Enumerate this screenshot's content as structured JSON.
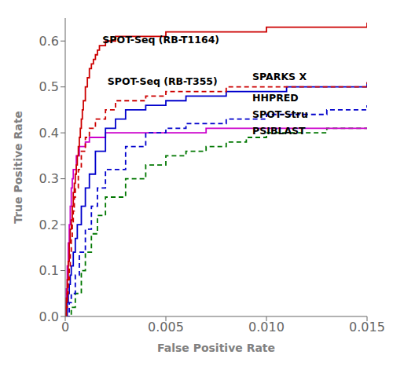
{
  "chart_data": {
    "type": "step",
    "title": "",
    "xlabel": "False Positive Rate",
    "ylabel": "True Positive Rate",
    "xlim": [
      0,
      0.015
    ],
    "ylim": [
      0,
      0.65
    ],
    "xticks": [
      0,
      0.005,
      {
        "value": 0.01,
        "label": "0.010"
      },
      0.015
    ],
    "yticks": [
      {
        "value": 0,
        "label": "0.0"
      },
      0.1,
      0.2,
      0.3,
      0.4,
      0.5,
      0.6
    ],
    "grid": false,
    "series": [
      {
        "color": "#007700",
        "line_style": "dashed",
        "x": [
          0,
          0.0003,
          0.0005,
          0.0008,
          0.001,
          0.0013,
          0.0016,
          0.002,
          0.003,
          0.004,
          0.005,
          0.006,
          0.007,
          0.008,
          0.009,
          0.01,
          0.011,
          0.012,
          0.013,
          0.014,
          0.015
        ],
        "values": [
          0,
          0.02,
          0.05,
          0.1,
          0.14,
          0.18,
          0.22,
          0.26,
          0.3,
          0.33,
          0.35,
          0.36,
          0.37,
          0.38,
          0.39,
          0.4,
          0.4,
          0.4,
          0.41,
          0.41,
          0.41
        ]
      },
      {
        "color": "#cc00cc",
        "line_style": "solid",
        "x": [
          0,
          5e-05,
          0.0001,
          0.00015,
          0.0002,
          0.00025,
          0.0003,
          0.00035,
          0.0004,
          0.00055,
          0.0007,
          0.001,
          0.0012,
          0.0015,
          0.002,
          0.003,
          0.005,
          0.007,
          0.01,
          0.015
        ],
        "values": [
          0,
          0.06,
          0.11,
          0.16,
          0.2,
          0.24,
          0.28,
          0.3,
          0.32,
          0.35,
          0.37,
          0.38,
          0.39,
          0.39,
          0.4,
          0.4,
          0.4,
          0.41,
          0.41,
          0.41
        ]
      },
      {
        "color": "#0000cc",
        "line_style": "dashed",
        "x": [
          0,
          0.0002,
          0.0003,
          0.0005,
          0.0007,
          0.001,
          0.0013,
          0.0016,
          0.002,
          0.003,
          0.004,
          0.005,
          0.006,
          0.007,
          0.008,
          0.009,
          0.01,
          0.011,
          0.012,
          0.013,
          0.014,
          0.015
        ],
        "values": [
          0,
          0.03,
          0.05,
          0.09,
          0.14,
          0.19,
          0.24,
          0.28,
          0.32,
          0.37,
          0.4,
          0.41,
          0.42,
          0.42,
          0.43,
          0.43,
          0.44,
          0.44,
          0.44,
          0.45,
          0.45,
          0.46
        ]
      },
      {
        "color": "#0000cc",
        "line_style": "solid",
        "x": [
          0,
          0.0001,
          0.00015,
          0.0002,
          0.00025,
          0.0003,
          0.0004,
          0.0005,
          0.0006,
          0.0008,
          0.001,
          0.0012,
          0.0015,
          0.002,
          0.0025,
          0.003,
          0.004,
          0.005,
          0.006,
          0.007,
          0.008,
          0.009,
          0.01,
          0.011,
          0.012,
          0.013,
          0.014,
          0.015
        ],
        "values": [
          0,
          0.03,
          0.05,
          0.07,
          0.09,
          0.11,
          0.14,
          0.17,
          0.2,
          0.24,
          0.28,
          0.31,
          0.36,
          0.41,
          0.43,
          0.45,
          0.46,
          0.47,
          0.48,
          0.48,
          0.49,
          0.49,
          0.49,
          0.5,
          0.5,
          0.5,
          0.5,
          0.51
        ]
      },
      {
        "color": "#cc0000",
        "line_style": "dashed",
        "x": [
          0,
          5e-05,
          0.0001,
          0.00015,
          0.0002,
          0.00025,
          0.0003,
          0.00035,
          0.0004,
          0.00045,
          0.0005,
          0.00065,
          0.0008,
          0.001,
          0.0012,
          0.0015,
          0.002,
          0.0025,
          0.003,
          0.004,
          0.005,
          0.006,
          0.008,
          0.01,
          0.012,
          0.015
        ],
        "values": [
          0,
          0.02,
          0.05,
          0.08,
          0.11,
          0.14,
          0.17,
          0.2,
          0.23,
          0.26,
          0.28,
          0.32,
          0.36,
          0.39,
          0.41,
          0.43,
          0.45,
          0.47,
          0.47,
          0.48,
          0.49,
          0.49,
          0.5,
          0.5,
          0.5,
          0.51
        ]
      },
      {
        "color": "#cc0000",
        "line_style": "solid",
        "x": [
          0,
          5e-05,
          0.0001,
          0.00015,
          0.0002,
          0.00025,
          0.0003,
          0.00035,
          0.0004,
          0.00045,
          0.0005,
          0.00055,
          0.0006,
          0.00065,
          0.0007,
          0.00075,
          0.0008,
          0.00085,
          0.0009,
          0.001,
          0.0011,
          0.0012,
          0.0013,
          0.0014,
          0.0015,
          0.0016,
          0.0017,
          0.0018,
          0.002,
          0.0022,
          0.0025,
          0.003,
          0.004,
          0.005,
          0.006,
          0.007,
          0.008,
          0.01,
          0.012,
          0.015
        ],
        "values": [
          0,
          0.04,
          0.08,
          0.12,
          0.16,
          0.19,
          0.21,
          0.24,
          0.27,
          0.29,
          0.31,
          0.33,
          0.35,
          0.37,
          0.39,
          0.41,
          0.43,
          0.45,
          0.47,
          0.5,
          0.52,
          0.54,
          0.55,
          0.56,
          0.57,
          0.58,
          0.59,
          0.59,
          0.6,
          0.6,
          0.61,
          0.61,
          0.61,
          0.62,
          0.62,
          0.62,
          0.62,
          0.63,
          0.63,
          0.64
        ]
      }
    ],
    "annotations": [
      {
        "x": 0.00185,
        "y": 0.595,
        "text": "SPOT-Seq (RB-T1164)"
      },
      {
        "x": 0.0021,
        "y": 0.505,
        "text": "SPOT-Seq (RB-T355)"
      },
      {
        "x": 0.0093,
        "y": 0.515,
        "text": "SPARKS X"
      },
      {
        "x": 0.0093,
        "y": 0.468,
        "text": "HHPRED"
      },
      {
        "x": 0.0093,
        "y": 0.432,
        "text": "SPOT-Stru"
      },
      {
        "x": 0.0093,
        "y": 0.396,
        "text": "PSIBLAST"
      }
    ]
  }
}
